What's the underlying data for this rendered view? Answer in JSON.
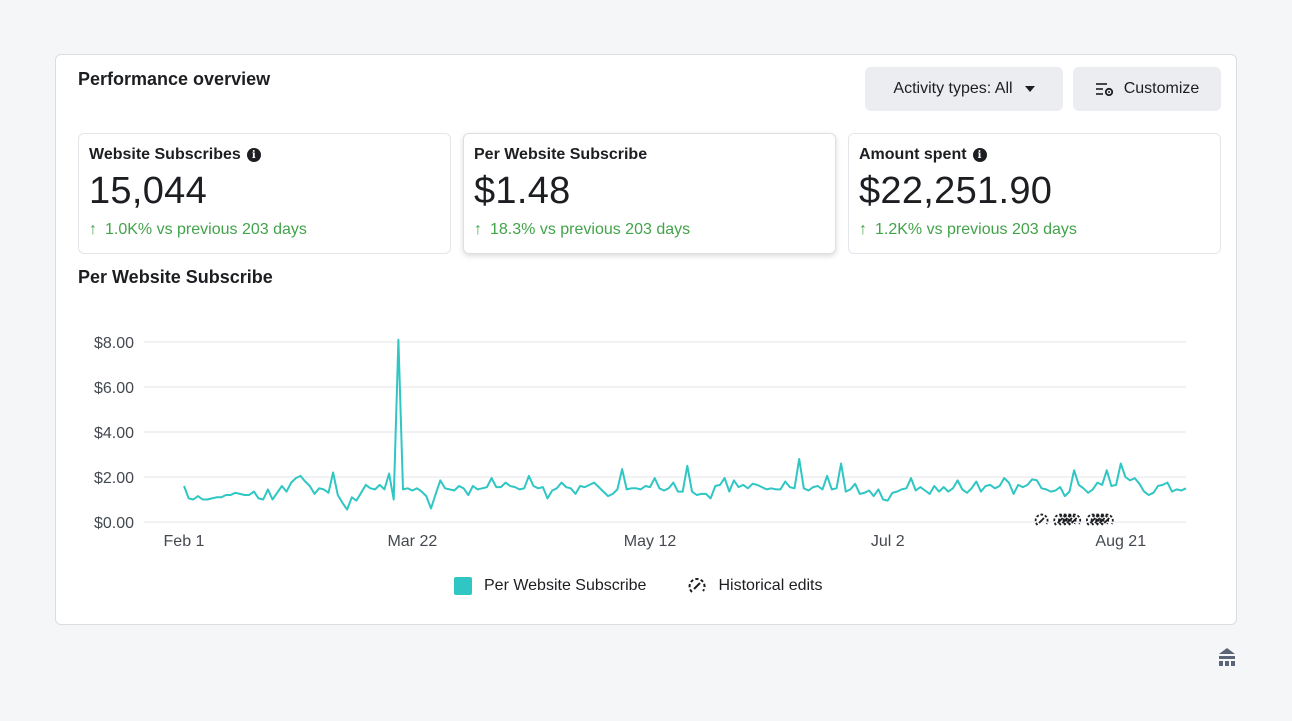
{
  "panel": {
    "title": "Performance overview",
    "activity_button": "Activity types: All",
    "customize_button": "Customize"
  },
  "cards": [
    {
      "label": "Website Subscribes",
      "has_info": true,
      "value": "15,044",
      "delta": "1.0K% vs previous 203 days"
    },
    {
      "label": "Per Website Subscribe",
      "has_info": false,
      "value": "$1.48",
      "delta": "18.3% vs previous 203 days"
    },
    {
      "label": "Amount spent",
      "has_info": true,
      "value": "$22,251.90",
      "delta": "1.2K% vs previous 203 days"
    }
  ],
  "chart_title": "Per Website Subscribe",
  "colors": {
    "series": "#2fc6c4",
    "positive": "#42a34a",
    "grid": "#e4e6eb"
  },
  "chart_data": {
    "type": "line",
    "title": "Per Website Subscribe",
    "xlabel": "",
    "ylabel": "",
    "ylim": [
      0,
      8
    ],
    "y_ticks": [
      "$8.00",
      "$6.00",
      "$4.00",
      "$2.00",
      "$0.00"
    ],
    "y_tick_values": [
      8,
      6,
      4,
      2,
      0
    ],
    "x_ticks": [
      "Feb 1",
      "Mar 22",
      "May 12",
      "Jul 2",
      "Aug 21"
    ],
    "x_tick_days": [
      0,
      49,
      100,
      151,
      201
    ],
    "grid": true,
    "legend_position": "bottom",
    "series": [
      {
        "name": "Per Website Subscribe",
        "values": [
          1.6,
          1.05,
          1.0,
          1.15,
          1.0,
          1.0,
          1.05,
          1.1,
          1.1,
          1.2,
          1.2,
          1.3,
          1.25,
          1.2,
          1.2,
          1.35,
          1.05,
          1.0,
          1.45,
          1.0,
          1.3,
          1.6,
          1.35,
          1.75,
          1.95,
          2.05,
          1.8,
          1.6,
          1.25,
          1.5,
          1.45,
          1.3,
          2.2,
          1.2,
          0.85,
          0.55,
          1.1,
          0.95,
          1.3,
          1.65,
          1.5,
          1.45,
          1.65,
          1.45,
          2.15,
          1.0,
          8.1,
          1.45,
          1.5,
          1.4,
          1.5,
          1.35,
          1.15,
          0.6,
          1.25,
          1.85,
          1.5,
          1.45,
          1.4,
          1.6,
          1.5,
          1.2,
          1.6,
          1.45,
          1.5,
          1.55,
          1.95,
          1.55,
          1.55,
          1.75,
          1.6,
          1.55,
          1.45,
          1.5,
          2.05,
          1.6,
          1.5,
          1.55,
          1.05,
          1.4,
          1.5,
          1.75,
          1.55,
          1.5,
          1.25,
          1.6,
          1.55,
          1.65,
          1.75,
          1.55,
          1.35,
          1.15,
          1.25,
          1.45,
          2.35,
          1.45,
          1.5,
          1.5,
          1.45,
          1.6,
          1.55,
          1.95,
          1.5,
          1.4,
          1.5,
          1.75,
          1.35,
          1.35,
          2.5,
          1.35,
          1.2,
          1.25,
          1.25,
          1.05,
          1.6,
          1.65,
          1.95,
          1.35,
          1.85,
          1.55,
          1.65,
          1.5,
          1.7,
          1.65,
          1.55,
          1.45,
          1.5,
          1.45,
          1.45,
          1.8,
          1.55,
          1.5,
          2.8,
          1.5,
          1.4,
          1.55,
          1.6,
          1.45,
          2.05,
          1.45,
          1.5,
          2.6,
          1.35,
          1.45,
          1.7,
          1.25,
          1.3,
          1.4,
          1.15,
          1.45,
          1.0,
          0.95,
          1.3,
          1.35,
          1.45,
          1.5,
          1.95,
          1.4,
          1.55,
          1.4,
          1.25,
          1.6,
          1.35,
          1.55,
          1.35,
          1.5,
          1.85,
          1.45,
          1.3,
          1.5,
          1.8,
          1.35,
          1.6,
          1.65,
          1.5,
          1.6,
          1.95,
          1.75,
          1.25,
          1.65,
          1.55,
          1.65,
          1.9,
          1.85,
          1.5,
          1.45,
          1.35,
          1.4,
          1.55,
          1.15,
          1.35,
          2.3,
          1.65,
          1.5,
          1.3,
          1.45,
          1.75,
          1.65,
          2.3,
          1.6,
          1.65,
          2.6,
          2.0,
          1.85,
          1.95,
          1.7,
          1.35,
          1.2,
          1.3,
          1.6,
          1.65,
          1.75,
          1.35,
          1.45,
          1.4,
          1.5
        ]
      }
    ],
    "historical_edit_days": [
      184,
      188,
      189,
      190,
      191,
      195,
      196,
      197,
      198
    ]
  },
  "legend": {
    "series_label": "Per Website Subscribe",
    "edits_label": "Historical edits"
  }
}
